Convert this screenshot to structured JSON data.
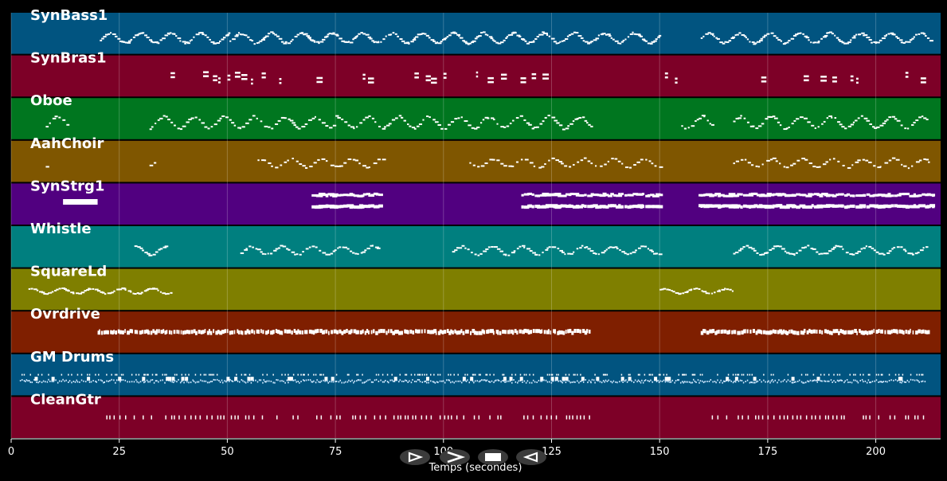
{
  "window": {
    "background": "#000000"
  },
  "axis": {
    "title": "Temps (secondes)",
    "xmin": 0,
    "xmax": 215,
    "ticks": [
      0,
      25,
      50,
      75,
      100,
      125,
      150,
      175,
      200
    ],
    "tick_labels": [
      "0",
      "25",
      "50",
      "75",
      "100",
      "125",
      "150",
      "175",
      "200"
    ]
  },
  "tracks": [
    {
      "name": "SynBass1",
      "color": "#015480",
      "style": "dots",
      "pitch_range": [
        0.25,
        0.55
      ],
      "density": 1.3,
      "segments": [
        [
          20.5,
          50.5
        ],
        [
          50.5,
          100
        ],
        [
          100,
          150
        ],
        [
          159.5,
          212.5
        ]
      ]
    },
    {
      "name": "SynBras1",
      "color": "#7d0027",
      "style": "chords",
      "pitch_range": [
        0.35,
        0.55
      ],
      "density": 0.3,
      "segments": [
        [
          35,
          62
        ],
        [
          62,
          100
        ],
        [
          100,
          126
        ],
        [
          150,
          158
        ],
        [
          167,
          212
        ]
      ]
    },
    {
      "name": "Oboe",
      "color": "#00761f",
      "style": "dots",
      "pitch_range": [
        0.25,
        0.6
      ],
      "density": 0.9,
      "segments": [
        [
          8,
          13
        ],
        [
          32,
          75
        ],
        [
          75,
          134
        ],
        [
          155,
          162
        ],
        [
          167,
          212
        ]
      ]
    },
    {
      "name": "AahChoir",
      "color": "#7f5600",
      "style": "dots",
      "pitch_range": [
        0.35,
        0.6
      ],
      "density": 0.7,
      "segments": [
        [
          8,
          9
        ],
        [
          32,
          33
        ],
        [
          57,
          86
        ],
        [
          106,
          150
        ],
        [
          167,
          213
        ]
      ]
    },
    {
      "name": "SynStrg1",
      "color": "#510080",
      "style": "blocks",
      "pitch_range": [
        0.3,
        0.55
      ],
      "density": 1.0,
      "segments": [
        [
          12,
          20
        ],
        [
          69.5,
          85.5
        ],
        [
          118,
          150
        ],
        [
          159,
          213
        ]
      ]
    },
    {
      "name": "Whistle",
      "color": "#007f7f",
      "style": "dots",
      "pitch_range": [
        0.3,
        0.55
      ],
      "density": 1.0,
      "segments": [
        [
          28.5,
          35.5
        ],
        [
          53,
          85
        ],
        [
          102,
          150
        ],
        [
          167,
          212
        ]
      ]
    },
    {
      "name": "SquareLd",
      "color": "#7f7f00",
      "style": "dots",
      "pitch_range": [
        0.4,
        0.55
      ],
      "density": 1.1,
      "segments": [
        [
          4,
          37
        ],
        [
          150,
          167
        ]
      ]
    },
    {
      "name": "Ovrdrive",
      "color": "#7f1f00",
      "style": "dense",
      "pitch_range": [
        0.35,
        0.55
      ],
      "density": 1.2,
      "segments": [
        [
          20,
          134
        ],
        [
          159.5,
          212.5
        ]
      ]
    },
    {
      "name": "GM Drums",
      "color": "#015480",
      "style": "drums",
      "pitch_range": [
        0.3,
        0.75
      ],
      "density": 1.6,
      "segments": [
        [
          2,
          134
        ],
        [
          134,
          150
        ],
        [
          150,
          211.5
        ]
      ]
    },
    {
      "name": "CleanGtr",
      "color": "#7d0027",
      "style": "ticks",
      "pitch_range": [
        0.42,
        0.52
      ],
      "density": 0.6,
      "segments": [
        [
          22,
          134
        ],
        [
          160,
          212
        ]
      ]
    }
  ],
  "controls": [
    {
      "name": "play-button",
      "icon": "play-outline-icon"
    },
    {
      "name": "forward-button",
      "icon": "forward-icon"
    },
    {
      "name": "stop-button",
      "icon": "stop-icon"
    },
    {
      "name": "rewind-button",
      "icon": "rewind-icon"
    }
  ]
}
